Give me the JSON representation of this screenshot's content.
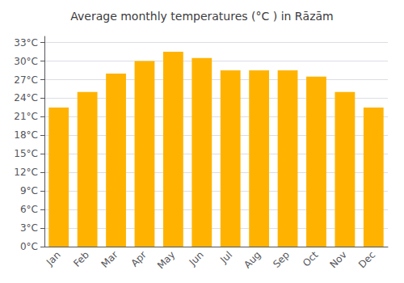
{
  "chart_data": {
    "type": "bar",
    "title": "Average monthly temperatures (°C ) in Rāzām",
    "categories": [
      "Jan",
      "Feb",
      "Mar",
      "Apr",
      "May",
      "Jun",
      "Jul",
      "Aug",
      "Sep",
      "Oct",
      "Nov",
      "Dec"
    ],
    "values": [
      22.5,
      25.0,
      28.0,
      30.0,
      31.5,
      30.5,
      28.5,
      28.5,
      28.5,
      27.5,
      25.0,
      22.5
    ],
    "color": "#FFB300",
    "ylim": [
      0,
      34
    ],
    "yticks": [
      {
        "value": 0,
        "label": "0°C"
      },
      {
        "value": 3,
        "label": "3°C"
      },
      {
        "value": 6,
        "label": "6°C"
      },
      {
        "value": 9,
        "label": "9°C"
      },
      {
        "value": 12,
        "label": "12°C"
      },
      {
        "value": 15,
        "label": "15°C"
      },
      {
        "value": 18,
        "label": "18°C"
      },
      {
        "value": 21,
        "label": "21°C"
      },
      {
        "value": 24,
        "label": "24°C"
      },
      {
        "value": 27,
        "label": "27°C"
      },
      {
        "value": 30,
        "label": "30°C"
      },
      {
        "value": 33,
        "label": "33°C"
      }
    ],
    "grid": true
  }
}
